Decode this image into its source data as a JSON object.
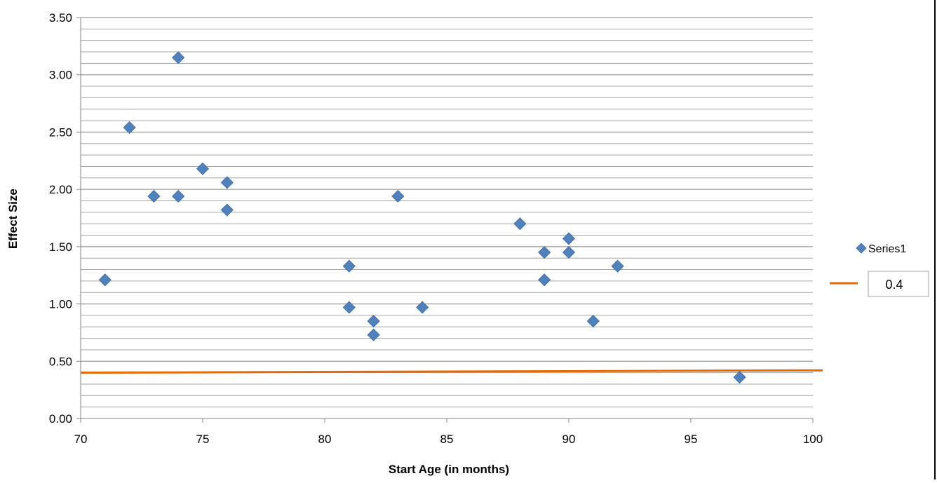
{
  "chart_data": {
    "type": "scatter",
    "title": "",
    "xlabel": "Start Age (in months)",
    "ylabel": "Effect Size",
    "xlim": [
      70,
      100
    ],
    "ylim": [
      0,
      3.5
    ],
    "x_ticks": [
      "70",
      "75",
      "80",
      "85",
      "90",
      "95",
      "100"
    ],
    "y_ticks": [
      "0.00",
      "0.50",
      "1.00",
      "1.50",
      "2.00",
      "2.50",
      "3.00",
      "3.50"
    ],
    "minor_grid_step": 0.1,
    "grid": true,
    "legend_position": "right",
    "series": [
      {
        "name": "Series1",
        "marker": "diamond",
        "color": "#4f81bd",
        "points": [
          {
            "x": 71,
            "y": 1.21
          },
          {
            "x": 72,
            "y": 2.54
          },
          {
            "x": 73,
            "y": 1.94
          },
          {
            "x": 74,
            "y": 3.15
          },
          {
            "x": 74,
            "y": 1.94
          },
          {
            "x": 75,
            "y": 2.18
          },
          {
            "x": 76,
            "y": 2.06
          },
          {
            "x": 76,
            "y": 1.82
          },
          {
            "x": 81,
            "y": 1.33
          },
          {
            "x": 81,
            "y": 0.97
          },
          {
            "x": 82,
            "y": 0.85
          },
          {
            "x": 82,
            "y": 0.73
          },
          {
            "x": 83,
            "y": 1.94
          },
          {
            "x": 84,
            "y": 0.97
          },
          {
            "x": 88,
            "y": 1.7
          },
          {
            "x": 89,
            "y": 1.45
          },
          {
            "x": 89,
            "y": 1.21
          },
          {
            "x": 90,
            "y": 1.57
          },
          {
            "x": 90,
            "y": 1.45
          },
          {
            "x": 91,
            "y": 0.85
          },
          {
            "x": 92,
            "y": 1.33
          },
          {
            "x": 97,
            "y": 0.36
          }
        ]
      }
    ],
    "reference_line": {
      "label": "0.4",
      "color": "#e36c09",
      "y_start": 0.4,
      "y_end": 0.42
    }
  }
}
